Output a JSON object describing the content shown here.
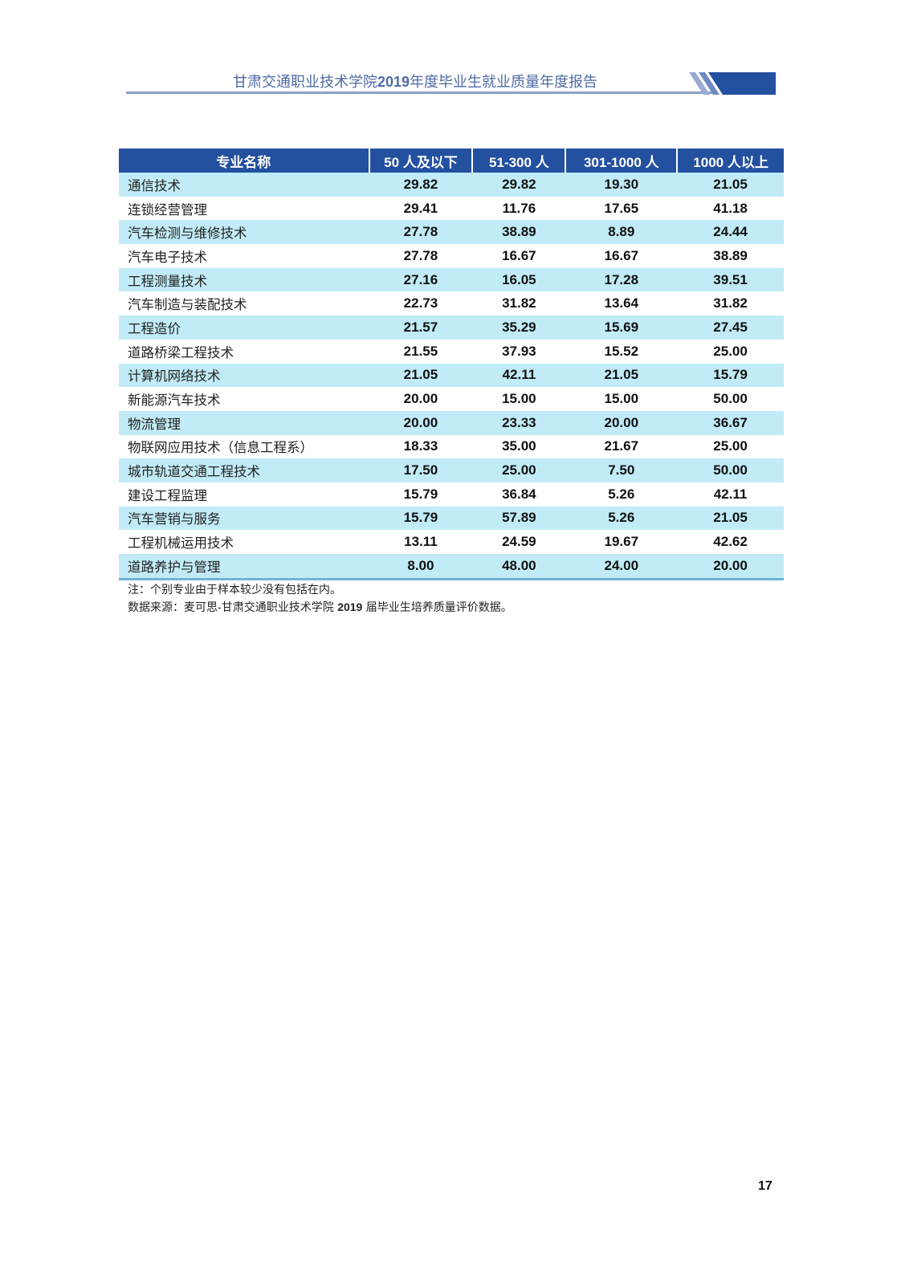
{
  "header": {
    "title_pre": "甘肃交通职业技术学院",
    "title_year": "2019",
    "title_post": "年度毕业生就业质量年度报告",
    "accent_color": "#2450a0"
  },
  "table": {
    "columns": [
      "专业名称",
      "50 人及以下",
      "51-300 人",
      "301-1000 人",
      "1000 人以上"
    ],
    "rows": [
      [
        "通信技术",
        "29.82",
        "29.82",
        "19.30",
        "21.05"
      ],
      [
        "连锁经营管理",
        "29.41",
        "11.76",
        "17.65",
        "41.18"
      ],
      [
        "汽车检测与维修技术",
        "27.78",
        "38.89",
        "8.89",
        "24.44"
      ],
      [
        "汽车电子技术",
        "27.78",
        "16.67",
        "16.67",
        "38.89"
      ],
      [
        "工程测量技术",
        "27.16",
        "16.05",
        "17.28",
        "39.51"
      ],
      [
        "汽车制造与装配技术",
        "22.73",
        "31.82",
        "13.64",
        "31.82"
      ],
      [
        "工程造价",
        "21.57",
        "35.29",
        "15.69",
        "27.45"
      ],
      [
        "道路桥梁工程技术",
        "21.55",
        "37.93",
        "15.52",
        "25.00"
      ],
      [
        "计算机网络技术",
        "21.05",
        "42.11",
        "21.05",
        "15.79"
      ],
      [
        "新能源汽车技术",
        "20.00",
        "15.00",
        "15.00",
        "50.00"
      ],
      [
        "物流管理",
        "20.00",
        "23.33",
        "20.00",
        "36.67"
      ],
      [
        "物联网应用技术（信息工程系）",
        "18.33",
        "35.00",
        "21.67",
        "25.00"
      ],
      [
        "城市轨道交通工程技术",
        "17.50",
        "25.00",
        "7.50",
        "50.00"
      ],
      [
        "建设工程监理",
        "15.79",
        "36.84",
        "5.26",
        "42.11"
      ],
      [
        "汽车营销与服务",
        "15.79",
        "57.89",
        "5.26",
        "21.05"
      ],
      [
        "工程机械运用技术",
        "13.11",
        "24.59",
        "19.67",
        "42.62"
      ],
      [
        "道路养护与管理",
        "8.00",
        "48.00",
        "24.00",
        "20.00"
      ]
    ]
  },
  "notes": {
    "note": "注：个别专业由于样本较少没有包括在内。",
    "source_pre": "数据来源：麦可思-甘肃交通职业技术学院 ",
    "source_year": "2019",
    "source_post": " 届毕业生培养质量评价数据。"
  },
  "page_number": "17"
}
